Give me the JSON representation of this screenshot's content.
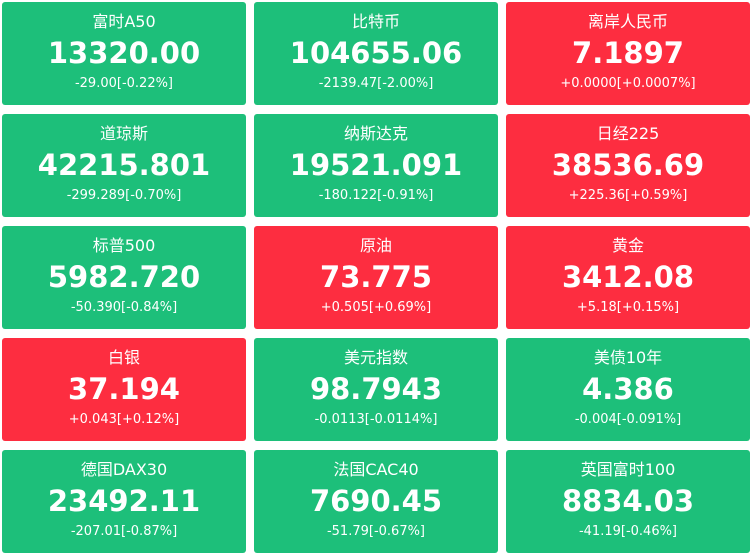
{
  "colors": {
    "down": "#1dbf7a",
    "up": "#fd2d40"
  },
  "tiles": [
    {
      "name": "富时A50",
      "price": "13320.00",
      "change": "-29.00[-0.22%]",
      "trend": "down"
    },
    {
      "name": "比特币",
      "price": "104655.06",
      "change": "-2139.47[-2.00%]",
      "trend": "down"
    },
    {
      "name": "离岸人民币",
      "price": "7.1897",
      "change": "+0.0000[+0.0007%]",
      "trend": "up"
    },
    {
      "name": "道琼斯",
      "price": "42215.801",
      "change": "-299.289[-0.70%]",
      "trend": "down"
    },
    {
      "name": "纳斯达克",
      "price": "19521.091",
      "change": "-180.122[-0.91%]",
      "trend": "down"
    },
    {
      "name": "日经225",
      "price": "38536.69",
      "change": "+225.36[+0.59%]",
      "trend": "up"
    },
    {
      "name": "标普500",
      "price": "5982.720",
      "change": "-50.390[-0.84%]",
      "trend": "down"
    },
    {
      "name": "原油",
      "price": "73.775",
      "change": "+0.505[+0.69%]",
      "trend": "up"
    },
    {
      "name": "黄金",
      "price": "3412.08",
      "change": "+5.18[+0.15%]",
      "trend": "up"
    },
    {
      "name": "白银",
      "price": "37.194",
      "change": "+0.043[+0.12%]",
      "trend": "up"
    },
    {
      "name": "美元指数",
      "price": "98.7943",
      "change": "-0.0113[-0.0114%]",
      "trend": "down"
    },
    {
      "name": "美债10年",
      "price": "4.386",
      "change": "-0.004[-0.091%]",
      "trend": "down"
    },
    {
      "name": "德国DAX30",
      "price": "23492.11",
      "change": "-207.01[-0.87%]",
      "trend": "down"
    },
    {
      "name": "法国CAC40",
      "price": "7690.45",
      "change": "-51.79[-0.67%]",
      "trend": "down"
    },
    {
      "name": "英国富时100",
      "price": "8834.03",
      "change": "-41.19[-0.46%]",
      "trend": "down"
    }
  ]
}
